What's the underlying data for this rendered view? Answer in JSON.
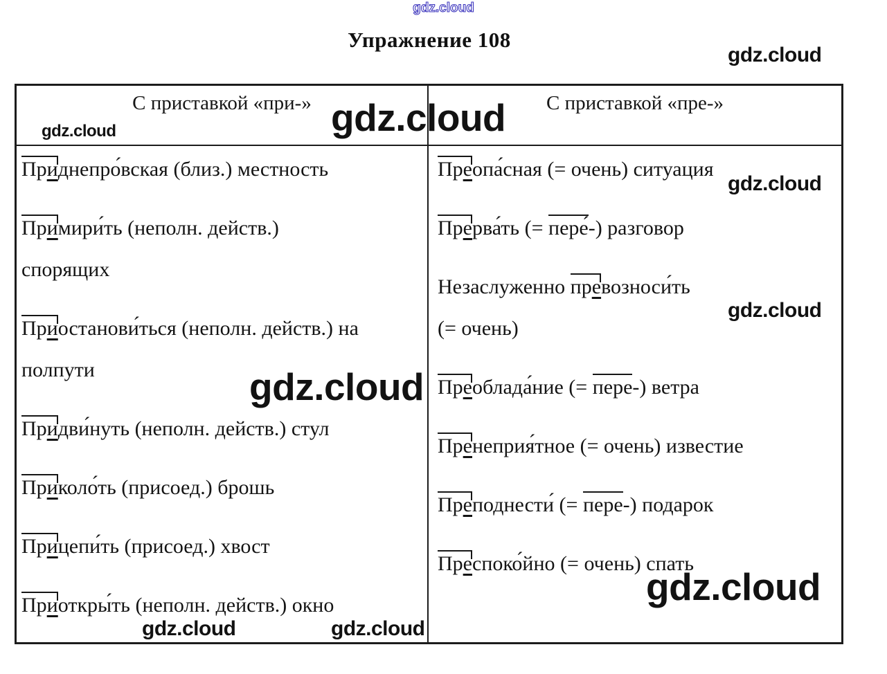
{
  "title": "Упражнение 108",
  "watermarks": {
    "top_blue": "gdz.cloud",
    "top_right": "gdz.cloud",
    "header_left": "gdz.cloud",
    "header_big": "gdz.cloud",
    "right_row1": "gdz.cloud",
    "right_row3": "gdz.cloud",
    "left_mid_big": "gdz.cloud",
    "bottom_right_big": "gdz.cloud",
    "bottom_left": "gdz.cloud",
    "bottom_center": "gdz.cloud",
    "blue_color": "#3c35bd",
    "black_color": "#121212"
  },
  "table": {
    "headers": {
      "left": "С приставкой «при-»",
      "right": "С приставкой «пре-»"
    },
    "left_entries": [
      [
        [
          [
            "p1",
            "Пр"
          ],
          [
            "p2",
            "и"
          ],
          [
            "t",
            "днепро́вская (близ.) местность"
          ]
        ]
      ],
      [
        [
          [
            "p1",
            "Пр"
          ],
          [
            "p2",
            "и"
          ],
          [
            "t",
            "мири́ть (неполн. действ.)"
          ]
        ],
        [
          [
            "t",
            "спорящих"
          ]
        ]
      ],
      [
        [
          [
            "p1",
            "Пр"
          ],
          [
            "p2",
            "и"
          ],
          [
            "t",
            "останови́ться (неполн. действ.) на"
          ]
        ],
        [
          [
            "t",
            "полпути"
          ]
        ]
      ],
      [
        [
          [
            "p1",
            "Пр"
          ],
          [
            "p2",
            "и"
          ],
          [
            "t",
            "дви́нуть (неполн. действ.) стул"
          ]
        ]
      ],
      [
        [
          [
            "p1",
            "Пр"
          ],
          [
            "p2",
            "и"
          ],
          [
            "t",
            "коло́ть (присоед.) брошь"
          ]
        ]
      ],
      [
        [
          [
            "p1",
            "Пр"
          ],
          [
            "p2",
            "и"
          ],
          [
            "t",
            "цепи́ть (присоед.) хвост"
          ]
        ]
      ],
      [
        [
          [
            "p1",
            "Пр"
          ],
          [
            "p2",
            "и"
          ],
          [
            "t",
            "откры́ть (неполн. действ.) окно"
          ]
        ]
      ]
    ],
    "right_entries": [
      [
        [
          [
            "p1",
            "Пр"
          ],
          [
            "p2",
            "е"
          ],
          [
            "t",
            "опа́сная (= очень) ситуация"
          ]
        ]
      ],
      [
        [
          [
            "p1",
            "Пр"
          ],
          [
            "p2",
            "е"
          ],
          [
            "t",
            "рва́ть (= "
          ],
          [
            "ov",
            "пере́"
          ],
          [
            "t",
            "-) разговор"
          ]
        ]
      ],
      [
        [
          [
            "t",
            "Незаслуженно "
          ],
          [
            "p1",
            "пр"
          ],
          [
            "p2",
            "е"
          ],
          [
            "t",
            "возноси́ть"
          ]
        ],
        [
          [
            "t",
            "(= очень)"
          ]
        ]
      ],
      [
        [
          [
            "p1",
            "Пр"
          ],
          [
            "p2",
            "е"
          ],
          [
            "t",
            "облада́ние (= "
          ],
          [
            "ov",
            "пере"
          ],
          [
            "t",
            "-) ветра"
          ]
        ]
      ],
      [
        [
          [
            "p1",
            "Пр"
          ],
          [
            "p2",
            "е"
          ],
          [
            "t",
            "неприя́тное (= очень) известие"
          ]
        ]
      ],
      [
        [
          [
            "p1",
            "Пр"
          ],
          [
            "p2",
            "е"
          ],
          [
            "t",
            "поднести́ (= "
          ],
          [
            "ov",
            "пере"
          ],
          [
            "t",
            "-) подарок"
          ]
        ]
      ],
      [
        [
          [
            "p1",
            "Пр"
          ],
          [
            "p2",
            "е"
          ],
          [
            "t",
            "споко́йно (= очень) спать"
          ]
        ]
      ]
    ]
  }
}
